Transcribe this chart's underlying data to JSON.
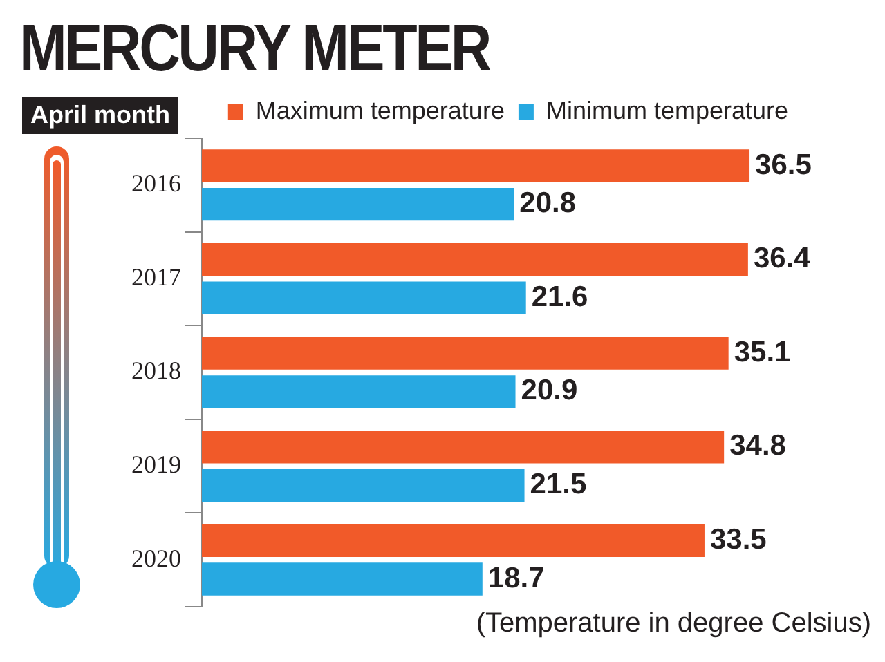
{
  "chart_data": {
    "type": "bar",
    "orientation": "horizontal",
    "title": "MERCURY METER",
    "subtitle": "April month",
    "categories": [
      "2016",
      "2017",
      "2018",
      "2019",
      "2020"
    ],
    "series": [
      {
        "name": "Maximum temperature",
        "color": "#f15a29",
        "values": [
          36.5,
          36.4,
          35.1,
          34.8,
          33.5
        ]
      },
      {
        "name": "Minimum temperature",
        "color": "#27a9e1",
        "values": [
          20.8,
          21.6,
          20.9,
          21.5,
          18.7
        ]
      }
    ],
    "data_labels": true,
    "legend": "top",
    "grid": false,
    "annotations": [
      "(Temperature in degree Celsius)"
    ]
  }
}
